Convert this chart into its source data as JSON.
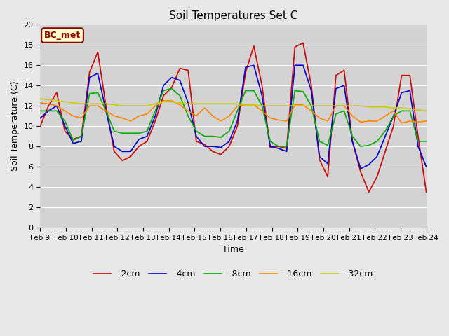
{
  "title": "Soil Temperatures Set C",
  "xlabel": "Time",
  "ylabel": "Soil Temperature (C)",
  "ylim": [
    0,
    20
  ],
  "fig_bg": "#e8e8e8",
  "ax_bg": "#d3d3d3",
  "annotation": "BC_met",
  "annotation_bg": "#ffffcc",
  "annotation_border": "#8b0000",
  "annotation_text_color": "#8b0000",
  "legend_labels": [
    "-2cm",
    "-4cm",
    "-8cm",
    "-16cm",
    "-32cm"
  ],
  "legend_colors": [
    "#cc0000",
    "#0000cc",
    "#00aa00",
    "#ff8800",
    "#cccc00"
  ],
  "line_width": 1.2,
  "x_tick_labels": [
    "Feb 9",
    "Feb 10",
    "Feb 11",
    "Feb 12",
    "Feb 13",
    "Feb 14",
    "Feb 15",
    "Feb 16",
    "Feb 17",
    "Feb 18",
    "Feb 19",
    "Feb 20",
    "Feb 21",
    "Feb 22",
    "Feb 23",
    "Feb 24"
  ],
  "cm2": [
    10.0,
    12.0,
    13.3,
    9.5,
    8.7,
    9.0,
    15.3,
    17.3,
    12.0,
    7.5,
    6.6,
    7.0,
    8.0,
    8.5,
    10.5,
    13.0,
    13.8,
    15.7,
    15.5,
    8.5,
    8.2,
    7.5,
    7.2,
    8.0,
    10.0,
    15.3,
    17.9,
    14.0,
    7.9,
    8.0,
    7.8,
    17.8,
    18.2,
    14.0,
    6.7,
    5.0,
    15.0,
    15.5,
    8.5,
    5.5,
    3.5,
    5.0,
    7.5,
    10.0,
    15.0,
    15.0,
    9.0,
    3.5
  ],
  "cm4": [
    10.8,
    11.5,
    12.0,
    10.0,
    8.3,
    8.5,
    14.8,
    15.2,
    11.5,
    8.0,
    7.5,
    7.5,
    8.7,
    9.0,
    11.0,
    14.0,
    14.8,
    14.5,
    12.3,
    9.0,
    8.0,
    8.0,
    7.9,
    8.5,
    10.5,
    15.8,
    16.0,
    13.0,
    8.0,
    7.8,
    7.5,
    16.0,
    16.0,
    13.5,
    7.0,
    6.3,
    13.7,
    14.0,
    8.5,
    5.8,
    6.2,
    7.0,
    9.0,
    11.0,
    13.3,
    13.5,
    8.0,
    6.0
  ],
  "cm8": [
    11.5,
    11.5,
    11.5,
    10.5,
    8.6,
    9.0,
    13.2,
    13.3,
    11.5,
    9.5,
    9.3,
    9.3,
    9.3,
    9.5,
    11.5,
    13.5,
    13.7,
    13.0,
    11.0,
    9.5,
    9.0,
    9.0,
    8.9,
    9.5,
    11.5,
    13.5,
    13.5,
    12.0,
    8.5,
    8.0,
    8.0,
    13.5,
    13.4,
    12.0,
    8.5,
    8.1,
    11.2,
    11.5,
    9.0,
    8.0,
    8.1,
    8.5,
    9.5,
    11.0,
    11.5,
    11.5,
    8.5,
    8.5
  ],
  "cm16": [
    12.3,
    12.2,
    12.0,
    11.5,
    11.0,
    10.8,
    12.0,
    12.0,
    11.5,
    11.0,
    10.8,
    10.5,
    11.0,
    11.2,
    12.0,
    12.5,
    12.5,
    12.1,
    11.5,
    11.0,
    11.8,
    11.0,
    10.5,
    11.0,
    12.0,
    12.1,
    12.1,
    11.5,
    10.8,
    10.6,
    10.5,
    12.1,
    12.1,
    11.5,
    10.8,
    10.5,
    12.0,
    12.0,
    11.0,
    10.4,
    10.5,
    10.5,
    11.0,
    11.5,
    10.3,
    10.5,
    10.4,
    10.5
  ],
  "cm32": [
    12.7,
    12.6,
    12.5,
    12.4,
    12.3,
    12.2,
    12.2,
    12.2,
    12.2,
    12.1,
    12.0,
    12.0,
    12.0,
    12.0,
    12.2,
    12.4,
    12.4,
    12.3,
    12.2,
    12.2,
    12.2,
    12.2,
    12.2,
    12.2,
    12.2,
    12.1,
    12.1,
    12.0,
    12.0,
    12.0,
    12.0,
    12.0,
    12.0,
    12.0,
    12.0,
    12.0,
    12.0,
    12.0,
    12.0,
    12.0,
    11.9,
    11.9,
    11.9,
    11.8,
    11.8,
    11.7,
    11.6,
    11.5
  ]
}
